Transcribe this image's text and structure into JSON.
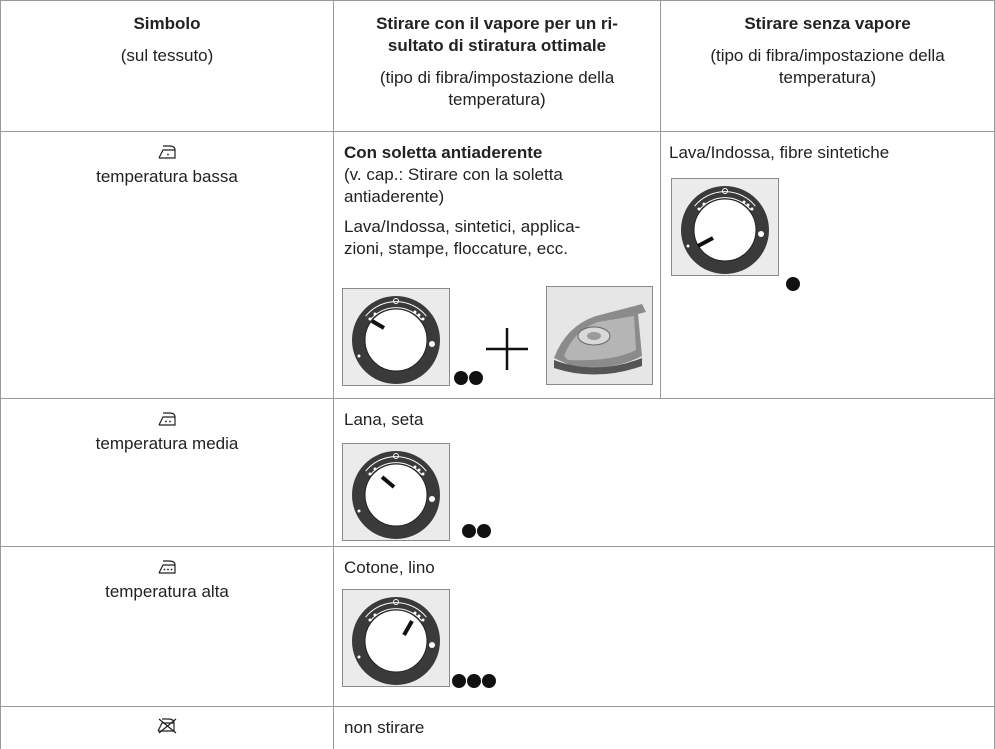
{
  "header": {
    "symbol": {
      "title": "Simbolo",
      "note": "(sul tessuto)"
    },
    "steam": {
      "title": [
        "Stirare con il vapore per un ri-",
        "sultato di stiratura ottimale"
      ],
      "note": [
        "(tipo di fibra/impostazione della",
        "temperatura)"
      ]
    },
    "dry": {
      "title": "Stirare senza vapore",
      "note": [
        "(tipo di fibra/impostazione della",
        "temperatura)"
      ]
    }
  },
  "rows": [
    {
      "label": "temperatura bassa",
      "steam": {
        "title": "Con soletta antiaderente",
        "note": [
          "(v. cap.: Stirare con la soletta",
          "antiaderente)"
        ],
        "text": [
          "Lava/Indossa, sintetici, applica-",
          "zioni, stampe, floccature, ecc."
        ]
      },
      "dry": {
        "text": "Lava/Indossa, fibre sintetiche"
      }
    },
    {
      "label": "temperatura media",
      "steam": {
        "text": "Lana, seta"
      }
    },
    {
      "label": "temperatura alta",
      "steam": {
        "text": "Cotone, lino"
      }
    },
    {
      "steam": {
        "text": "non stirare"
      }
    }
  ]
}
